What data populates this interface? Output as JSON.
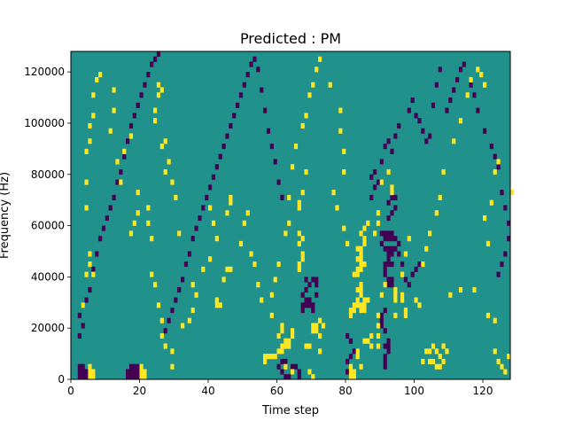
{
  "chart_data": {
    "type": "heatmap",
    "title": "Predicted : PM",
    "xlabel": "Time step",
    "ylabel": "Frequency (Hz)",
    "xlim": [
      0,
      128
    ],
    "ylim": [
      0,
      128000
    ],
    "x_ticks": [
      0,
      20,
      40,
      60,
      80,
      100,
      120
    ],
    "y_ticks": [
      0,
      20000,
      40000,
      60000,
      80000,
      100000,
      120000
    ],
    "x_tick_labels": [
      "0",
      "20",
      "40",
      "60",
      "80",
      "100",
      "120"
    ],
    "y_tick_labels": [
      "0",
      "20000",
      "40000",
      "60000",
      "80000",
      "100000",
      "120000"
    ],
    "n_freq_bins": 64,
    "bin_width_hz": 2000,
    "colors": {
      "background": "#21918c",
      "low": "#440154",
      "high": "#fde725"
    },
    "high_cells": [
      [
        5,
        0
      ],
      [
        5,
        1
      ],
      [
        5,
        2
      ],
      [
        6,
        0
      ],
      [
        6,
        1
      ],
      [
        20,
        0
      ],
      [
        20,
        1
      ],
      [
        21,
        0
      ],
      [
        21,
        1
      ],
      [
        20,
        2
      ],
      [
        56,
        4
      ],
      [
        57,
        4
      ],
      [
        58,
        4
      ],
      [
        59,
        4
      ],
      [
        56,
        3
      ],
      [
        60,
        5
      ],
      [
        61,
        5
      ],
      [
        61,
        6
      ],
      [
        62,
        6
      ],
      [
        62,
        7
      ],
      [
        63,
        6
      ],
      [
        63,
        7
      ],
      [
        60,
        8
      ],
      [
        61,
        9
      ],
      [
        61,
        10
      ],
      [
        64,
        8
      ],
      [
        64,
        9
      ],
      [
        62,
        2
      ],
      [
        64,
        1
      ],
      [
        68,
        6
      ],
      [
        69,
        6
      ],
      [
        70,
        9
      ],
      [
        70,
        10
      ],
      [
        71,
        9
      ],
      [
        71,
        10
      ],
      [
        72,
        8
      ],
      [
        72,
        5
      ],
      [
        73,
        10
      ],
      [
        72,
        11
      ],
      [
        69,
        1
      ],
      [
        70,
        0
      ],
      [
        81,
        0
      ],
      [
        81,
        1
      ],
      [
        82,
        0
      ],
      [
        82,
        1
      ],
      [
        81,
        2
      ],
      [
        84,
        2
      ],
      [
        83,
        4
      ],
      [
        83,
        5
      ],
      [
        85,
        7
      ],
      [
        86,
        7
      ],
      [
        87,
        6
      ],
      [
        87,
        8
      ],
      [
        81,
        12
      ],
      [
        81,
        13
      ],
      [
        82,
        13
      ],
      [
        82,
        14
      ],
      [
        83,
        14
      ],
      [
        84,
        13
      ],
      [
        84,
        14
      ],
      [
        85,
        13
      ],
      [
        85,
        14
      ],
      [
        85,
        15
      ],
      [
        86,
        15
      ],
      [
        83,
        15
      ],
      [
        84,
        16
      ],
      [
        83,
        17
      ],
      [
        84,
        17
      ],
      [
        84,
        18
      ],
      [
        82,
        20
      ],
      [
        83,
        20
      ],
      [
        83,
        21
      ],
      [
        84,
        21
      ],
      [
        84,
        22
      ],
      [
        85,
        22
      ],
      [
        83,
        23
      ],
      [
        84,
        23
      ],
      [
        84,
        24
      ],
      [
        83,
        25
      ],
      [
        84,
        25
      ],
      [
        85,
        26
      ],
      [
        85,
        27
      ],
      [
        84,
        28
      ],
      [
        85,
        29
      ],
      [
        86,
        30
      ],
      [
        89,
        6
      ],
      [
        89,
        8
      ],
      [
        89,
        10
      ],
      [
        89,
        12
      ],
      [
        90,
        16
      ],
      [
        91,
        18
      ],
      [
        88,
        28
      ],
      [
        89,
        30
      ],
      [
        89,
        32
      ],
      [
        90,
        38
      ],
      [
        92,
        40
      ],
      [
        93,
        36
      ],
      [
        93,
        37
      ],
      [
        94,
        12
      ],
      [
        94,
        15
      ],
      [
        94,
        16
      ],
      [
        94,
        17
      ],
      [
        96,
        16
      ],
      [
        96,
        15
      ],
      [
        97,
        12
      ],
      [
        97,
        13
      ],
      [
        96,
        20
      ],
      [
        97,
        24
      ],
      [
        98,
        27
      ],
      [
        66,
        33
      ],
      [
        66,
        34
      ],
      [
        67,
        36
      ],
      [
        68,
        40
      ],
      [
        66,
        21
      ],
      [
        66,
        22
      ],
      [
        67,
        23
      ],
      [
        67,
        24
      ],
      [
        66,
        26
      ],
      [
        67,
        27
      ],
      [
        66,
        28
      ],
      [
        42,
        14
      ],
      [
        43,
        14
      ],
      [
        42,
        15
      ],
      [
        45,
        21
      ],
      [
        46,
        21
      ],
      [
        45,
        32
      ],
      [
        46,
        34
      ],
      [
        46,
        35
      ],
      [
        102,
        3
      ],
      [
        104,
        3
      ],
      [
        105,
        3
      ],
      [
        106,
        2
      ],
      [
        107,
        2
      ],
      [
        108,
        3
      ],
      [
        103,
        5
      ],
      [
        104,
        5
      ],
      [
        105,
        6
      ],
      [
        106,
        5
      ],
      [
        107,
        4
      ],
      [
        108,
        6
      ],
      [
        109,
        5
      ],
      [
        110,
        16
      ],
      [
        113,
        17
      ],
      [
        117,
        17
      ],
      [
        121,
        12
      ],
      [
        123,
        5
      ],
      [
        124,
        3
      ],
      [
        125,
        2
      ],
      [
        126,
        1
      ],
      [
        127,
        4
      ],
      [
        123,
        11
      ],
      [
        121,
        26
      ],
      [
        120,
        31
      ],
      [
        122,
        34
      ],
      [
        123,
        40
      ],
      [
        124,
        42
      ],
      [
        128,
        36
      ],
      [
        100,
        15
      ],
      [
        101,
        14
      ],
      [
        102,
        22
      ],
      [
        103,
        25
      ],
      [
        104,
        28
      ],
      [
        106,
        32
      ],
      [
        107,
        35
      ],
      [
        108,
        40
      ],
      [
        111,
        46
      ],
      [
        113,
        50
      ],
      [
        115,
        55
      ],
      [
        116,
        58
      ],
      [
        118,
        60
      ],
      [
        119,
        59
      ],
      [
        120,
        57
      ],
      [
        3,
        14
      ],
      [
        4,
        20
      ],
      [
        5,
        22
      ],
      [
        6,
        20
      ],
      [
        5,
        24
      ],
      [
        4,
        33
      ],
      [
        4,
        38
      ],
      [
        4,
        44
      ],
      [
        5,
        46
      ],
      [
        5,
        49
      ],
      [
        6,
        51
      ],
      [
        6,
        55
      ],
      [
        7,
        58
      ],
      [
        8,
        59
      ],
      [
        11,
        48
      ],
      [
        12,
        52
      ],
      [
        12,
        56
      ],
      [
        13,
        42
      ],
      [
        14,
        38
      ],
      [
        15,
        44
      ],
      [
        17,
        47
      ],
      [
        17,
        28
      ],
      [
        18,
        30
      ],
      [
        19,
        32
      ],
      [
        19,
        36
      ],
      [
        22,
        30
      ],
      [
        22,
        33
      ],
      [
        23,
        27
      ],
      [
        23,
        20
      ],
      [
        24,
        18
      ],
      [
        25,
        14
      ],
      [
        26,
        11
      ],
      [
        26,
        8
      ],
      [
        27,
        6
      ],
      [
        29,
        2
      ],
      [
        29,
        5
      ],
      [
        24,
        50
      ],
      [
        24,
        52
      ],
      [
        25,
        55
      ],
      [
        25,
        57
      ],
      [
        26,
        56
      ],
      [
        26,
        45
      ],
      [
        27,
        46
      ],
      [
        27,
        40
      ],
      [
        28,
        42
      ],
      [
        29,
        38
      ],
      [
        30,
        35
      ],
      [
        31,
        28
      ],
      [
        32,
        10
      ],
      [
        34,
        11
      ],
      [
        35,
        13
      ],
      [
        35,
        18
      ],
      [
        36,
        16
      ],
      [
        38,
        21
      ],
      [
        40,
        23
      ],
      [
        40,
        33
      ],
      [
        41,
        30
      ],
      [
        42,
        27
      ],
      [
        44,
        19
      ],
      [
        49,
        26
      ],
      [
        50,
        30
      ],
      [
        51,
        32
      ],
      [
        52,
        24
      ],
      [
        53,
        22
      ],
      [
        54,
        18
      ],
      [
        55,
        15
      ],
      [
        58,
        12
      ],
      [
        58,
        16
      ],
      [
        59,
        19
      ],
      [
        60,
        22
      ],
      [
        62,
        28
      ],
      [
        63,
        30
      ],
      [
        63,
        35
      ],
      [
        64,
        41
      ],
      [
        65,
        45
      ],
      [
        67,
        49
      ],
      [
        68,
        51
      ],
      [
        69,
        55
      ],
      [
        70,
        57
      ],
      [
        71,
        60
      ],
      [
        72,
        62
      ],
      [
        75,
        57
      ],
      [
        78,
        52
      ],
      [
        78,
        48
      ],
      [
        79,
        44
      ],
      [
        79,
        40
      ],
      [
        76,
        36
      ],
      [
        77,
        33
      ],
      [
        79,
        29
      ],
      [
        80,
        26
      ]
    ],
    "low_cells": [
      [
        2,
        0
      ],
      [
        2,
        1
      ],
      [
        2,
        2
      ],
      [
        3,
        0
      ],
      [
        3,
        1
      ],
      [
        3,
        2
      ],
      [
        4,
        0
      ],
      [
        4,
        1
      ],
      [
        16,
        0
      ],
      [
        16,
        1
      ],
      [
        17,
        0
      ],
      [
        17,
        1
      ],
      [
        18,
        0
      ],
      [
        18,
        1
      ],
      [
        19,
        0
      ],
      [
        19,
        1
      ],
      [
        17,
        2
      ],
      [
        18,
        2
      ],
      [
        19,
        2
      ],
      [
        64,
        2
      ],
      [
        65,
        2
      ],
      [
        66,
        1
      ],
      [
        66,
        0
      ],
      [
        60,
        2
      ],
      [
        61,
        1
      ],
      [
        62,
        0
      ],
      [
        63,
        0
      ],
      [
        61,
        3
      ],
      [
        62,
        3
      ],
      [
        67,
        13
      ],
      [
        67,
        14
      ],
      [
        68,
        14
      ],
      [
        68,
        15
      ],
      [
        69,
        14
      ],
      [
        69,
        15
      ],
      [
        70,
        13
      ],
      [
        70,
        14
      ],
      [
        71,
        16
      ],
      [
        67,
        16
      ],
      [
        68,
        17
      ],
      [
        69,
        18
      ],
      [
        70,
        19
      ],
      [
        71,
        19
      ],
      [
        71,
        18
      ],
      [
        68,
        19
      ],
      [
        80,
        1
      ],
      [
        80,
        3
      ],
      [
        81,
        4
      ],
      [
        82,
        5
      ],
      [
        81,
        7
      ],
      [
        80,
        8
      ],
      [
        91,
        2
      ],
      [
        91,
        3
      ],
      [
        91,
        4
      ],
      [
        92,
        5
      ],
      [
        91,
        6
      ],
      [
        92,
        6
      ],
      [
        92,
        7
      ],
      [
        90,
        10
      ],
      [
        90,
        11
      ],
      [
        91,
        9
      ],
      [
        90,
        12
      ],
      [
        91,
        13
      ],
      [
        92,
        18
      ],
      [
        92,
        19
      ],
      [
        93,
        18
      ],
      [
        93,
        19
      ],
      [
        91,
        20
      ],
      [
        91,
        21
      ],
      [
        91,
        22
      ],
      [
        92,
        22
      ],
      [
        93,
        22
      ],
      [
        92,
        23
      ],
      [
        92,
        24
      ],
      [
        93,
        24
      ],
      [
        91,
        25
      ],
      [
        92,
        25
      ],
      [
        93,
        25
      ],
      [
        94,
        25
      ],
      [
        90,
        26
      ],
      [
        91,
        27
      ],
      [
        92,
        27
      ],
      [
        93,
        27
      ],
      [
        94,
        27
      ],
      [
        90,
        28
      ],
      [
        91,
        28
      ],
      [
        92,
        28
      ],
      [
        93,
        28
      ],
      [
        92,
        31
      ],
      [
        93,
        32
      ],
      [
        94,
        33
      ],
      [
        92,
        34
      ],
      [
        93,
        35
      ],
      [
        94,
        35
      ],
      [
        95,
        26
      ],
      [
        95,
        24
      ],
      [
        96,
        22
      ],
      [
        97,
        19
      ],
      [
        98,
        18
      ],
      [
        99,
        20
      ],
      [
        100,
        21
      ],
      [
        101,
        22
      ],
      [
        87,
        35
      ],
      [
        88,
        37
      ],
      [
        87,
        39
      ],
      [
        88,
        40
      ],
      [
        89,
        38
      ],
      [
        90,
        42
      ],
      [
        91,
        45
      ],
      [
        92,
        46
      ],
      [
        93,
        44
      ],
      [
        94,
        47
      ],
      [
        95,
        49
      ],
      [
        98,
        52
      ],
      [
        99,
        54
      ],
      [
        100,
        51
      ],
      [
        101,
        50
      ],
      [
        102,
        48
      ],
      [
        103,
        46
      ],
      [
        104,
        47
      ],
      [
        105,
        53
      ],
      [
        106,
        57
      ],
      [
        107,
        60
      ],
      [
        109,
        52
      ],
      [
        110,
        54
      ],
      [
        111,
        56
      ],
      [
        112,
        58
      ],
      [
        113,
        60
      ],
      [
        114,
        61
      ],
      [
        116,
        57
      ],
      [
        117,
        55
      ],
      [
        118,
        52
      ],
      [
        120,
        48
      ],
      [
        122,
        45
      ],
      [
        123,
        43
      ],
      [
        124,
        41
      ],
      [
        125,
        36
      ],
      [
        126,
        33
      ],
      [
        127,
        30
      ],
      [
        127,
        27
      ],
      [
        126,
        24
      ],
      [
        125,
        22
      ],
      [
        124,
        20
      ],
      [
        2,
        8
      ],
      [
        3,
        10
      ],
      [
        2,
        12
      ],
      [
        3,
        14
      ],
      [
        4,
        15
      ],
      [
        5,
        17
      ],
      [
        6,
        21
      ],
      [
        7,
        24
      ],
      [
        8,
        27
      ],
      [
        9,
        29
      ],
      [
        10,
        31
      ],
      [
        11,
        33
      ],
      [
        12,
        35
      ],
      [
        13,
        38
      ],
      [
        14,
        40
      ],
      [
        15,
        43
      ],
      [
        16,
        46
      ],
      [
        17,
        49
      ],
      [
        18,
        51
      ],
      [
        19,
        53
      ],
      [
        20,
        55
      ],
      [
        21,
        57
      ],
      [
        22,
        59
      ],
      [
        23,
        61
      ],
      [
        24,
        62
      ],
      [
        25,
        63
      ],
      [
        27,
        9
      ],
      [
        28,
        11
      ],
      [
        29,
        13
      ],
      [
        30,
        15
      ],
      [
        31,
        17
      ],
      [
        32,
        19
      ],
      [
        33,
        22
      ],
      [
        34,
        24
      ],
      [
        35,
        27
      ],
      [
        36,
        29
      ],
      [
        37,
        31
      ],
      [
        38,
        33
      ],
      [
        39,
        35
      ],
      [
        40,
        37
      ],
      [
        41,
        39
      ],
      [
        42,
        41
      ],
      [
        43,
        43
      ],
      [
        44,
        45
      ],
      [
        45,
        47
      ],
      [
        46,
        49
      ],
      [
        47,
        51
      ],
      [
        48,
        53
      ],
      [
        49,
        55
      ],
      [
        50,
        57
      ],
      [
        51,
        59
      ],
      [
        52,
        61
      ],
      [
        53,
        62
      ],
      [
        54,
        60
      ],
      [
        55,
        56
      ],
      [
        56,
        52
      ],
      [
        57,
        48
      ],
      [
        58,
        45
      ],
      [
        59,
        42
      ],
      [
        60,
        38
      ],
      [
        61,
        35
      ]
    ]
  }
}
